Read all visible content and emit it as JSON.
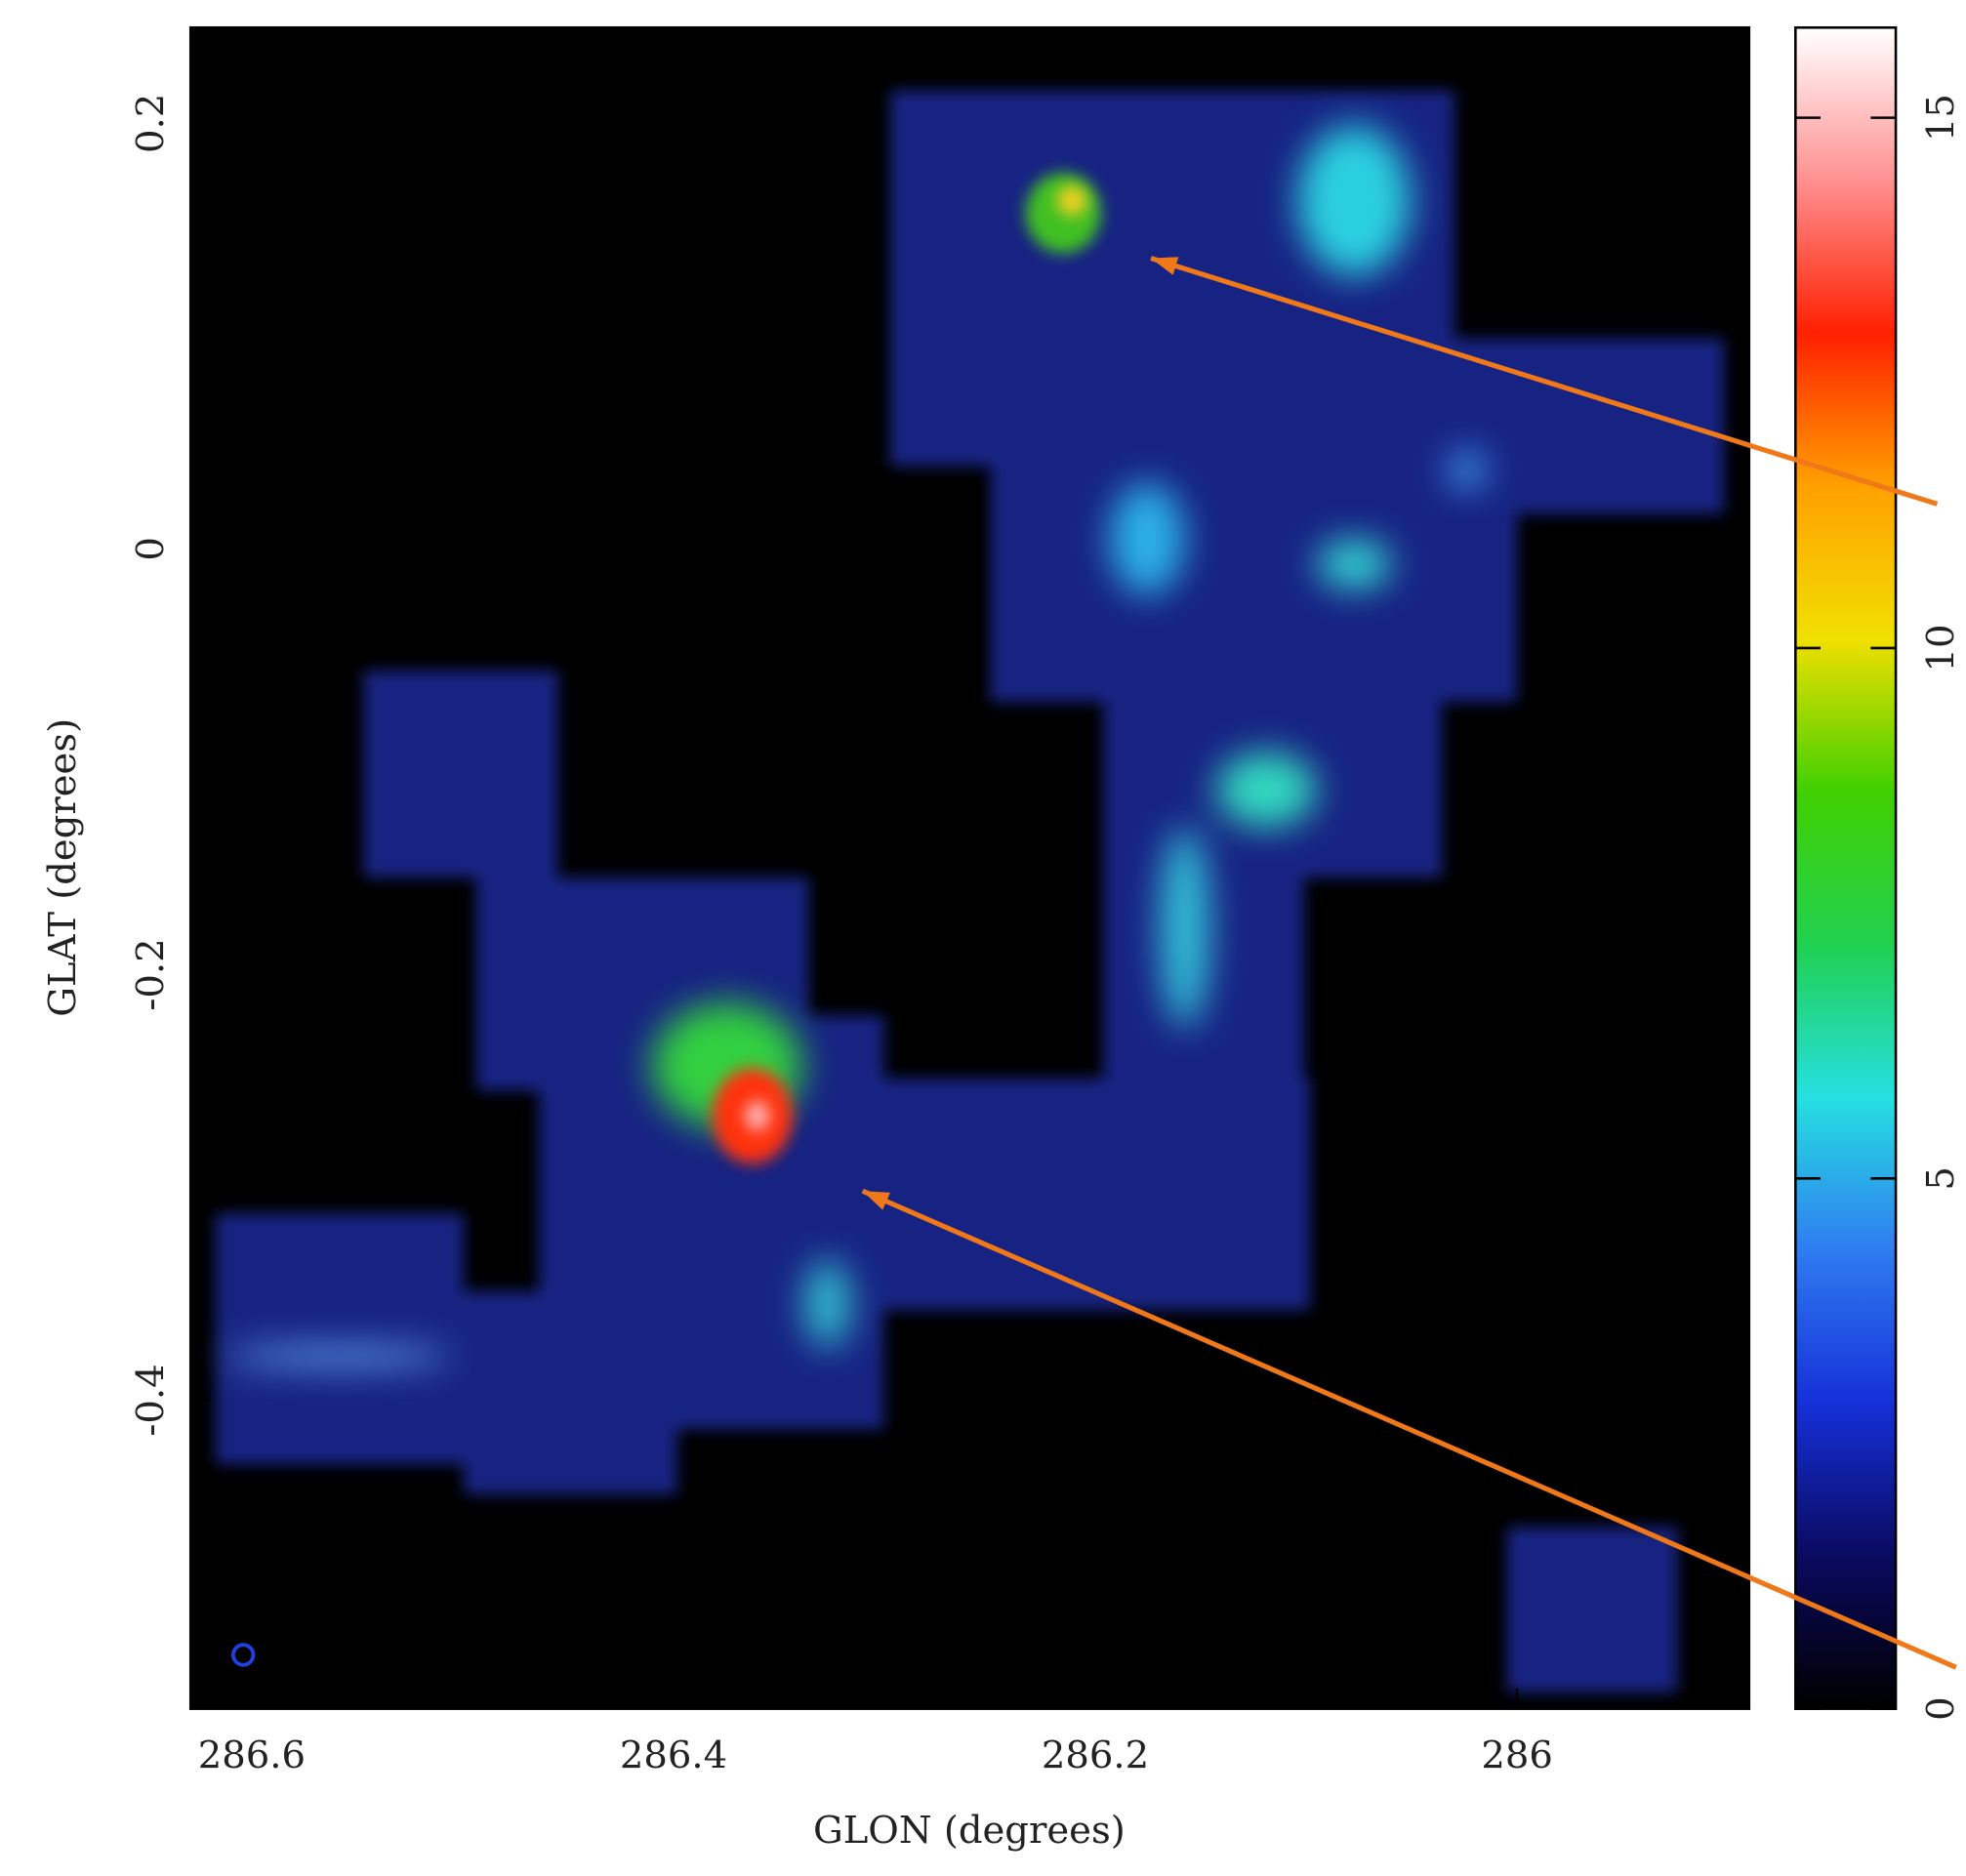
{
  "chart_data": {
    "type": "image",
    "xlabel": "GLON (degrees)",
    "ylabel": "GLAT (degrees)",
    "xlim": [
      286.629,
      285.89
    ],
    "xticks": [
      286.6,
      286.4,
      286.2,
      286
    ],
    "ylim": [
      -0.545,
      0.245
    ],
    "yticks": [
      0.2,
      0,
      -0.2,
      -0.4
    ],
    "clim": [
      0,
      15.85
    ],
    "cticks": [
      0,
      5,
      10,
      15
    ],
    "colormap": [
      "#000000",
      "#0a0a60",
      "#1530d8",
      "#2f7cf0",
      "#25e0e0",
      "#20d050",
      "#40d000",
      "#f0e000",
      "#ffa000",
      "#ff2000",
      "#ff9090",
      "#ffffff"
    ],
    "background": "#000000",
    "arrow_color": "#f07818"
  }
}
